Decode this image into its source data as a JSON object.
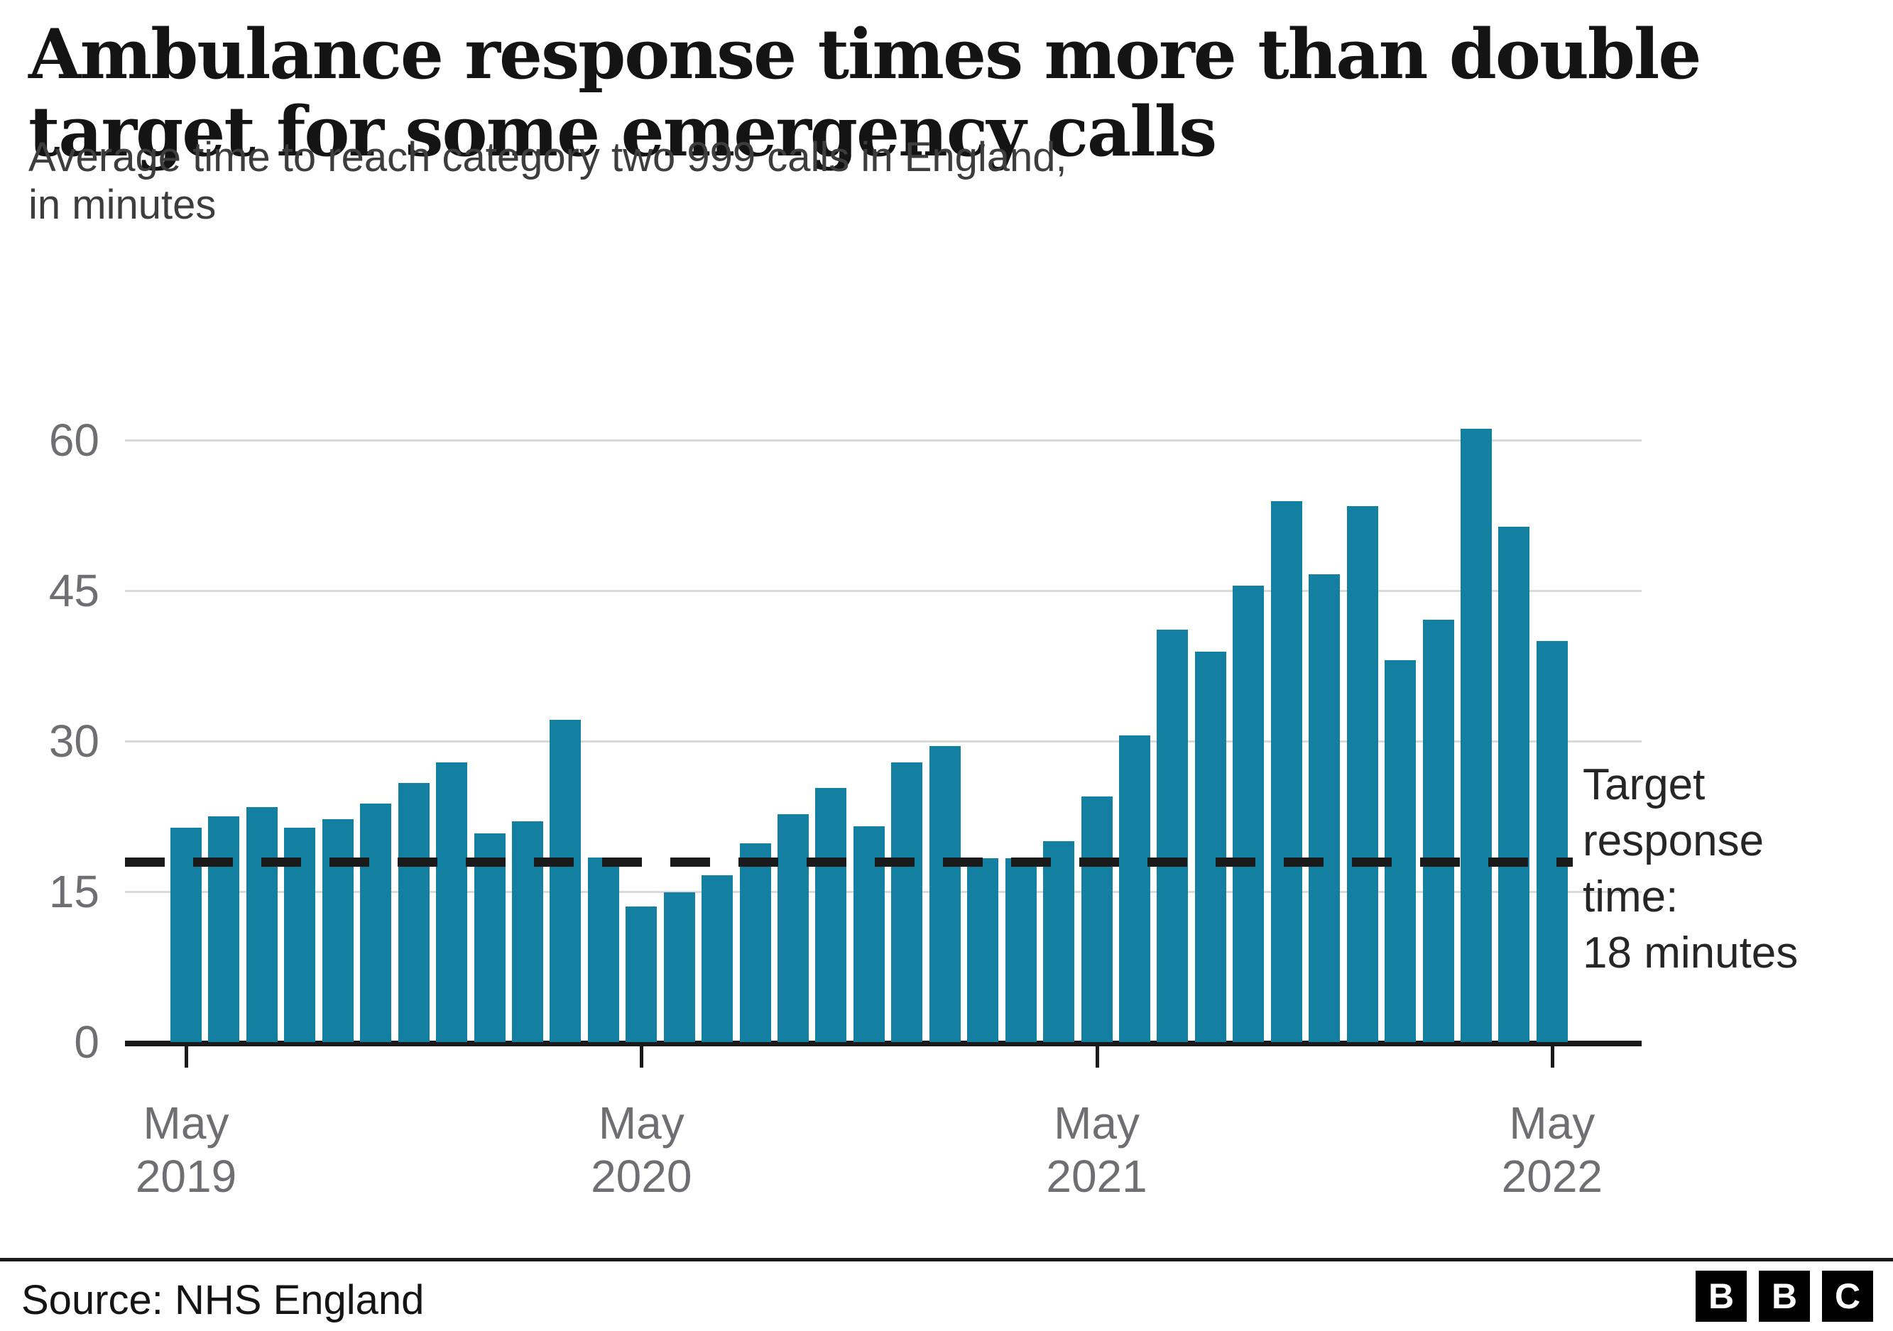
{
  "title_lines": [
    "Ambulance response times more than double",
    "target for some emergency calls"
  ],
  "subtitle_lines": [
    "Average time to reach category two 999 calls in England,",
    "in minutes"
  ],
  "annotation": {
    "lines": [
      "Target",
      "response",
      "time:",
      "18 minutes"
    ]
  },
  "footer": {
    "source": "Source: NHS England",
    "logo_letters": [
      "B",
      "B",
      "C"
    ]
  },
  "colors": {
    "bar": "#1380a1",
    "grid": "#d9d9d9",
    "axis": "#1a1a1a",
    "tick_label": "#6f6f73"
  },
  "y_axis": {
    "ticks": [
      0,
      15,
      30,
      45,
      60
    ]
  },
  "x_axis": {
    "tick_month_indices": [
      0,
      12,
      24,
      36
    ],
    "tick_labels": [
      [
        "May",
        "2019"
      ],
      [
        "May",
        "2020"
      ],
      [
        "May",
        "2021"
      ],
      [
        "May",
        "2022"
      ]
    ]
  },
  "chart_data": {
    "type": "bar",
    "title": "Ambulance response times more than double target for some emergency calls",
    "subtitle": "Average time to reach category two 999 calls in England, in minutes",
    "ylabel": "minutes",
    "ylim": [
      0,
      60
    ],
    "grid": "horizontal",
    "target_line": {
      "value": 18,
      "label": "Target response time: 18 minutes",
      "style": "dashed"
    },
    "categories": [
      "May 2019",
      "Jun 2019",
      "Jul 2019",
      "Aug 2019",
      "Sep 2019",
      "Oct 2019",
      "Nov 2019",
      "Dec 2019",
      "Jan 2020",
      "Feb 2020",
      "Mar 2020",
      "Apr 2020",
      "May 2020",
      "Jun 2020",
      "Jul 2020",
      "Aug 2020",
      "Sep 2020",
      "Oct 2020",
      "Nov 2020",
      "Dec 2020",
      "Jan 2021",
      "Feb 2021",
      "Mar 2021",
      "Apr 2021",
      "May 2021",
      "Jun 2021",
      "Jul 2021",
      "Aug 2021",
      "Sep 2021",
      "Oct 2021",
      "Nov 2021",
      "Dec 2021",
      "Jan 2022",
      "Feb 2022",
      "Mar 2022",
      "Apr 2022",
      "May 2022"
    ],
    "values": [
      21.4,
      22.5,
      23.4,
      21.4,
      22.2,
      23.8,
      25.8,
      27.9,
      20.8,
      22.0,
      32.1,
      18.4,
      13.5,
      14.9,
      16.6,
      19.8,
      22.7,
      25.3,
      21.5,
      27.9,
      29.5,
      18.3,
      18.3,
      20.0,
      24.5,
      30.6,
      41.1,
      38.9,
      45.5,
      53.9,
      46.6,
      53.4,
      38.1,
      42.1,
      61.1,
      51.4,
      40.0
    ]
  }
}
